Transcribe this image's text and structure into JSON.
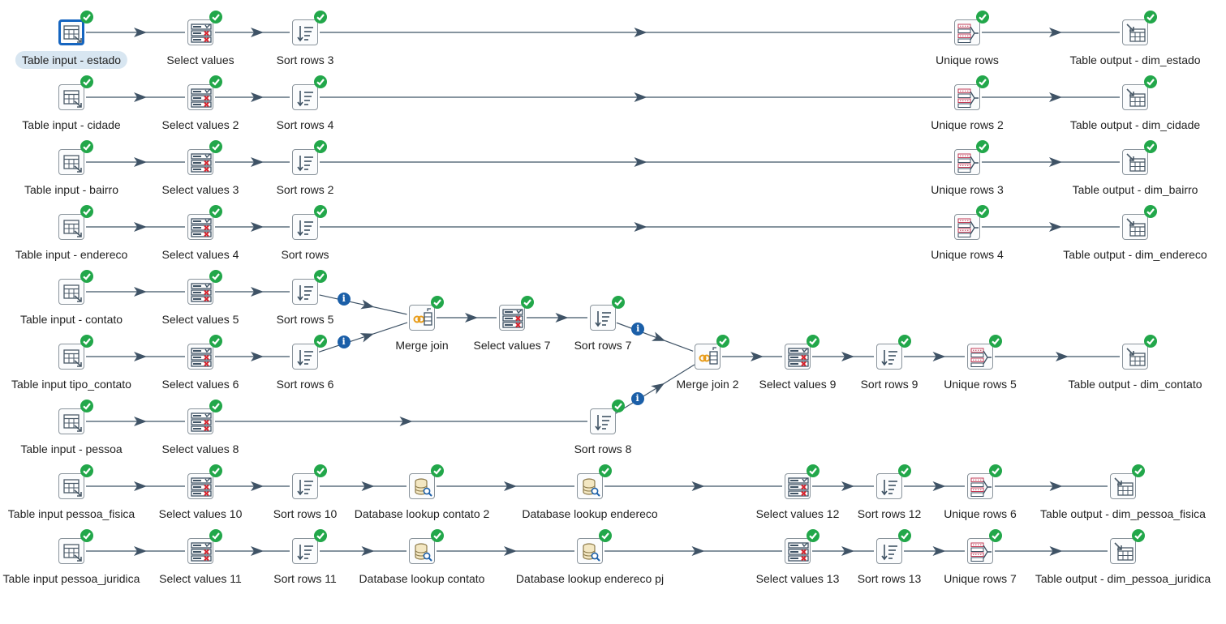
{
  "diagram": {
    "steps": [
      {
        "id": "ti_estado",
        "label": "Table input - estado",
        "type": "table-input",
        "selected": true
      },
      {
        "id": "sv1",
        "label": "Select values",
        "type": "select-values"
      },
      {
        "id": "sr3",
        "label": "Sort rows 3",
        "type": "sort-rows"
      },
      {
        "id": "ur1",
        "label": "Unique rows",
        "type": "unique-rows"
      },
      {
        "id": "to_estado",
        "label": "Table output - dim_estado",
        "type": "table-output"
      },
      {
        "id": "ti_cidade",
        "label": "Table input - cidade",
        "type": "table-input"
      },
      {
        "id": "sv2",
        "label": "Select values 2",
        "type": "select-values"
      },
      {
        "id": "sr4",
        "label": "Sort rows 4",
        "type": "sort-rows"
      },
      {
        "id": "ur2",
        "label": "Unique rows 2",
        "type": "unique-rows"
      },
      {
        "id": "to_cidade",
        "label": "Table output - dim_cidade",
        "type": "table-output"
      },
      {
        "id": "ti_bairro",
        "label": "Table input - bairro",
        "type": "table-input"
      },
      {
        "id": "sv3",
        "label": "Select values 3",
        "type": "select-values"
      },
      {
        "id": "sr2",
        "label": "Sort rows 2",
        "type": "sort-rows"
      },
      {
        "id": "ur3",
        "label": "Unique rows 3",
        "type": "unique-rows"
      },
      {
        "id": "to_bairro",
        "label": "Table output - dim_bairro",
        "type": "table-output"
      },
      {
        "id": "ti_endereco",
        "label": "Table input - endereco",
        "type": "table-input"
      },
      {
        "id": "sv4",
        "label": "Select values 4",
        "type": "select-values"
      },
      {
        "id": "sr",
        "label": "Sort rows",
        "type": "sort-rows"
      },
      {
        "id": "ur4",
        "label": "Unique rows 4",
        "type": "unique-rows"
      },
      {
        "id": "to_endereco",
        "label": "Table output - dim_endereco",
        "type": "table-output"
      },
      {
        "id": "ti_contato",
        "label": "Table input - contato",
        "type": "table-input"
      },
      {
        "id": "sv5",
        "label": "Select values 5",
        "type": "select-values"
      },
      {
        "id": "sr5",
        "label": "Sort rows 5",
        "type": "sort-rows"
      },
      {
        "id": "mj1",
        "label": "Merge join",
        "type": "merge-join"
      },
      {
        "id": "sv7",
        "label": "Select values 7",
        "type": "select-values"
      },
      {
        "id": "sr7",
        "label": "Sort rows 7",
        "type": "sort-rows"
      },
      {
        "id": "ti_tipo",
        "label": "Table input tipo_contato",
        "type": "table-input"
      },
      {
        "id": "sv6",
        "label": "Select values 6",
        "type": "select-values"
      },
      {
        "id": "sr6",
        "label": "Sort rows 6",
        "type": "sort-rows"
      },
      {
        "id": "mj2",
        "label": "Merge join 2",
        "type": "merge-join"
      },
      {
        "id": "sv9",
        "label": "Select values 9",
        "type": "select-values"
      },
      {
        "id": "sr9",
        "label": "Sort rows 9",
        "type": "sort-rows"
      },
      {
        "id": "ur5",
        "label": "Unique rows 5",
        "type": "unique-rows"
      },
      {
        "id": "to_contato",
        "label": "Table output - dim_contato",
        "type": "table-output"
      },
      {
        "id": "ti_pessoa",
        "label": "Table input - pessoa",
        "type": "table-input"
      },
      {
        "id": "sv8",
        "label": "Select values 8",
        "type": "select-values"
      },
      {
        "id": "sr8",
        "label": "Sort rows 8",
        "type": "sort-rows"
      },
      {
        "id": "ti_pf",
        "label": "Table input pessoa_fisica",
        "type": "table-input"
      },
      {
        "id": "sv10",
        "label": "Select values 10",
        "type": "select-values"
      },
      {
        "id": "sr10",
        "label": "Sort rows 10",
        "type": "sort-rows"
      },
      {
        "id": "dl_c2",
        "label": "Database lookup contato 2",
        "type": "db-lookup"
      },
      {
        "id": "dl_end",
        "label": "Database lookup endereco",
        "type": "db-lookup"
      },
      {
        "id": "sv12",
        "label": "Select values 12",
        "type": "select-values"
      },
      {
        "id": "sr12",
        "label": "Sort rows 12",
        "type": "sort-rows"
      },
      {
        "id": "ur6",
        "label": "Unique rows 6",
        "type": "unique-rows"
      },
      {
        "id": "to_pf",
        "label": "Table output - dim_pessoa_fisica",
        "type": "table-output"
      },
      {
        "id": "ti_pj",
        "label": "Table input pessoa_juridica",
        "type": "table-input"
      },
      {
        "id": "sv11",
        "label": "Select values 11",
        "type": "select-values"
      },
      {
        "id": "sr11",
        "label": "Sort rows 11",
        "type": "sort-rows"
      },
      {
        "id": "dl_c",
        "label": "Database lookup contato",
        "type": "db-lookup"
      },
      {
        "id": "dl_endpj",
        "label": "Database lookup endereco pj",
        "type": "db-lookup"
      },
      {
        "id": "sv13",
        "label": "Select values 13",
        "type": "select-values"
      },
      {
        "id": "sr13",
        "label": "Sort rows 13",
        "type": "sort-rows"
      },
      {
        "id": "ur7",
        "label": "Unique rows 7",
        "type": "unique-rows"
      },
      {
        "id": "to_pj",
        "label": "Table output - dim_pessoa_juridica",
        "type": "table-output"
      }
    ],
    "hops": [
      {
        "from": "ti_estado",
        "to": "sv1"
      },
      {
        "from": "sv1",
        "to": "sr3"
      },
      {
        "from": "sr3",
        "to": "ur1"
      },
      {
        "from": "ur1",
        "to": "to_estado"
      },
      {
        "from": "ti_cidade",
        "to": "sv2"
      },
      {
        "from": "sv2",
        "to": "sr4"
      },
      {
        "from": "sr4",
        "to": "ur2"
      },
      {
        "from": "ur2",
        "to": "to_cidade"
      },
      {
        "from": "ti_bairro",
        "to": "sv3"
      },
      {
        "from": "sv3",
        "to": "sr2"
      },
      {
        "from": "sr2",
        "to": "ur3"
      },
      {
        "from": "ur3",
        "to": "to_bairro"
      },
      {
        "from": "ti_endereco",
        "to": "sv4"
      },
      {
        "from": "sv4",
        "to": "sr"
      },
      {
        "from": "sr",
        "to": "ur4"
      },
      {
        "from": "ur4",
        "to": "to_endereco"
      },
      {
        "from": "ti_contato",
        "to": "sv5"
      },
      {
        "from": "sv5",
        "to": "sr5"
      },
      {
        "from": "sr5",
        "to": "mj1",
        "info": true
      },
      {
        "from": "ti_tipo",
        "to": "sv6"
      },
      {
        "from": "sv6",
        "to": "sr6"
      },
      {
        "from": "sr6",
        "to": "mj1",
        "info": true
      },
      {
        "from": "mj1",
        "to": "sv7"
      },
      {
        "from": "sv7",
        "to": "sr7"
      },
      {
        "from": "sr7",
        "to": "mj2",
        "info": true
      },
      {
        "from": "ti_pessoa",
        "to": "sv8"
      },
      {
        "from": "sv8",
        "to": "sr8"
      },
      {
        "from": "sr8",
        "to": "mj2",
        "info": true
      },
      {
        "from": "mj2",
        "to": "sv9"
      },
      {
        "from": "sv9",
        "to": "sr9"
      },
      {
        "from": "sr9",
        "to": "ur5"
      },
      {
        "from": "ur5",
        "to": "to_contato"
      },
      {
        "from": "ti_pf",
        "to": "sv10"
      },
      {
        "from": "sv10",
        "to": "sr10"
      },
      {
        "from": "sr10",
        "to": "dl_c2"
      },
      {
        "from": "dl_c2",
        "to": "dl_end"
      },
      {
        "from": "dl_end",
        "to": "sv12"
      },
      {
        "from": "sv12",
        "to": "sr12"
      },
      {
        "from": "sr12",
        "to": "ur6"
      },
      {
        "from": "ur6",
        "to": "to_pf"
      },
      {
        "from": "ti_pj",
        "to": "sv11"
      },
      {
        "from": "sv11",
        "to": "sr11"
      },
      {
        "from": "sr11",
        "to": "dl_c"
      },
      {
        "from": "dl_c",
        "to": "dl_endpj"
      },
      {
        "from": "dl_endpj",
        "to": "sv13"
      },
      {
        "from": "sv13",
        "to": "sr13"
      },
      {
        "from": "sr13",
        "to": "ur7"
      },
      {
        "from": "ur7",
        "to": "to_pj"
      }
    ]
  }
}
